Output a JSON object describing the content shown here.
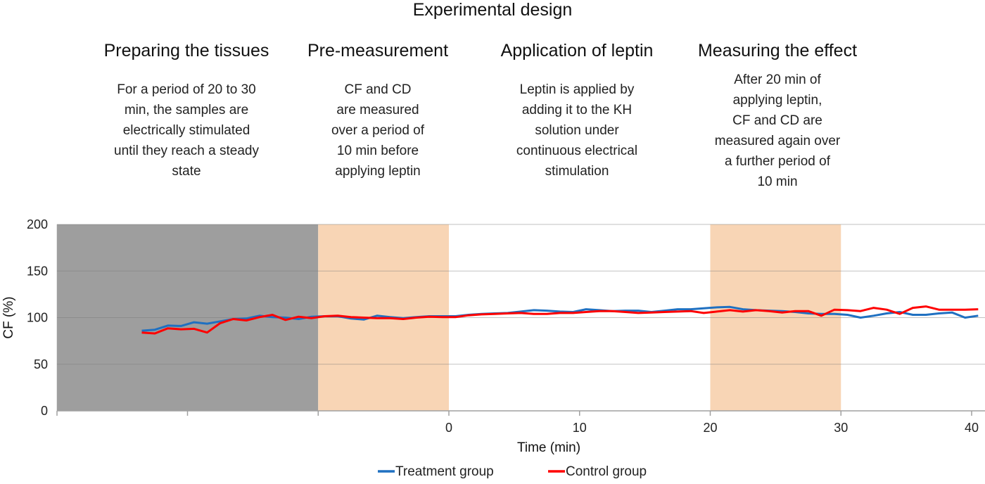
{
  "title": "Experimental design",
  "phases": [
    {
      "heading": "Preparing the tissues",
      "lines": [
        "For a period of 20 to 30",
        "min, the samples are",
        "electrically stimulated",
        "until they reach a steady",
        "state"
      ]
    },
    {
      "heading": "Pre-measurement",
      "lines": [
        "CF and CD",
        "are measured",
        "over a period of",
        "10 min before",
        "applying leptin"
      ]
    },
    {
      "heading": "Application of leptin",
      "lines": [
        "Leptin is applied by",
        "adding it to the KH",
        "solution under",
        "continuous electrical",
        "stimulation"
      ]
    },
    {
      "heading": "Measuring the effect",
      "lines": [
        "After 20 min of",
        "applying leptin,",
        "CF and CD are",
        "measured again over",
        "a further period of",
        "10 min"
      ]
    }
  ],
  "chart_data": {
    "type": "line",
    "title": "",
    "xlabel": "Time (min)",
    "ylabel": "CF (%)",
    "xlim": [
      -30,
      41
    ],
    "ylim": [
      0,
      200
    ],
    "yticks": [
      0,
      50,
      100,
      150,
      200
    ],
    "xticks": [
      {
        "value": -20,
        "label": ""
      },
      {
        "value": -10,
        "label": ""
      },
      {
        "value": 0,
        "label": "0"
      },
      {
        "value": 10,
        "label": "10"
      },
      {
        "value": 20,
        "label": "20"
      },
      {
        "value": 30,
        "label": "30"
      },
      {
        "value": 40,
        "label": "40"
      }
    ],
    "grid": "horizontal",
    "legend_position": "bottom-center",
    "shaded_regions": [
      {
        "name": "preparing-tissues",
        "from": -30,
        "to": -10,
        "color": "#9e9e9e"
      },
      {
        "name": "pre-measurement",
        "from": -10,
        "to": 0,
        "color": "#f8d5b5"
      },
      {
        "name": "measuring-effect",
        "from": 20,
        "to": 30,
        "color": "#f8d5b5"
      }
    ],
    "x": [
      -23.5,
      -22.5,
      -21.5,
      -20.5,
      -19.5,
      -18.5,
      -17.5,
      -16.5,
      -15.5,
      -14.5,
      -13.5,
      -12.5,
      -11.5,
      -10.5,
      -9.5,
      -8.5,
      -7.5,
      -6.5,
      -5.5,
      -4.5,
      -3.5,
      -2.5,
      -1.5,
      -0.5,
      0.5,
      1.5,
      2.5,
      3.5,
      4.5,
      5.5,
      6.5,
      7.5,
      8.5,
      9.5,
      10.5,
      11.5,
      12.5,
      13.5,
      14.5,
      15.5,
      16.5,
      17.5,
      18.5,
      19.5,
      20.5,
      21.5,
      22.5,
      23.5,
      24.5,
      25.5,
      26.5,
      27.5,
      28.5,
      29.5,
      30.5,
      31.5,
      32.5,
      33.5,
      34.5,
      35.5,
      36.5,
      37.5,
      38.5,
      39.5,
      40.5
    ],
    "series": [
      {
        "name": "Treatment group",
        "color": "#1f70c1",
        "values": [
          86,
          87,
          91.5,
          91,
          95,
          93.5,
          96,
          98.5,
          99,
          102,
          100.5,
          100,
          98.5,
          101,
          101.5,
          101.5,
          99,
          98,
          102,
          100.5,
          99.5,
          100.5,
          101.5,
          101.5,
          101.5,
          103,
          104,
          104.5,
          105,
          106.5,
          108,
          107.5,
          106.5,
          106,
          109,
          108,
          107,
          107.5,
          107.5,
          106,
          107.5,
          109,
          109,
          110,
          111,
          111.5,
          109,
          108,
          107.5,
          107,
          106,
          104.5,
          104,
          104,
          103,
          100,
          102,
          104.5,
          106,
          103,
          103,
          104.5,
          105.5,
          100,
          102
        ]
      },
      {
        "name": "Control group",
        "color": "#ff0000",
        "values": [
          84,
          83,
          88.5,
          87.5,
          88,
          84,
          94,
          98.5,
          97,
          100.5,
          103,
          97.5,
          101,
          99.5,
          101.5,
          102,
          100.5,
          100,
          99.5,
          99.5,
          98.5,
          100,
          101,
          100.5,
          100.5,
          102.5,
          103.5,
          104,
          104.5,
          105,
          104,
          104,
          105,
          105,
          106,
          107,
          107,
          106,
          105,
          105.5,
          106,
          106.5,
          107,
          105,
          106.5,
          108,
          106.5,
          108,
          107,
          105.5,
          107,
          107,
          102,
          108.5,
          108,
          107,
          110.5,
          108.5,
          104,
          110.5,
          112,
          108.5,
          108.5,
          108.5,
          109
        ]
      }
    ]
  }
}
